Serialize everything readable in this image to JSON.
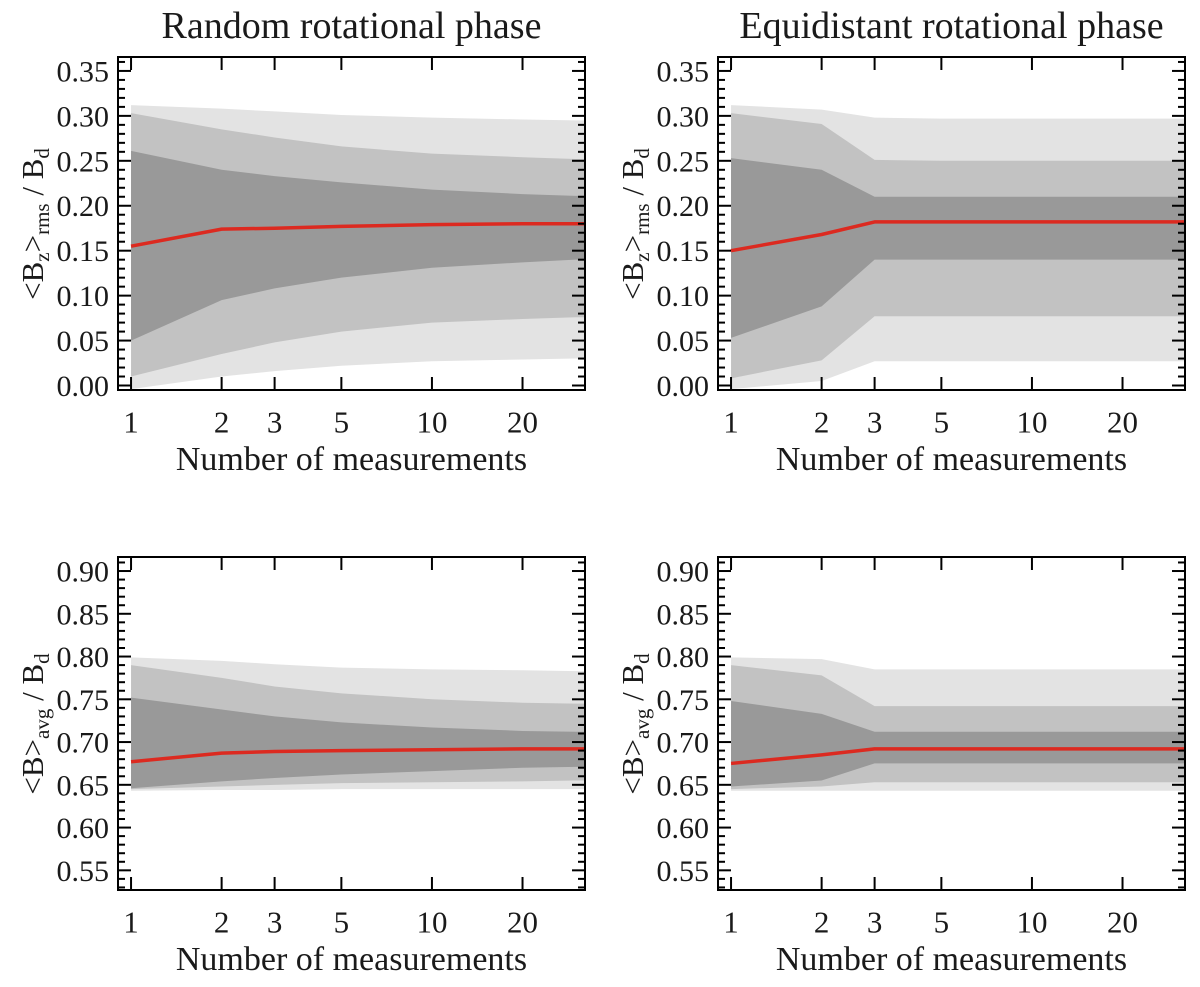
{
  "figure": {
    "column_titles": [
      "Random rotational phase",
      "Equidistant rotational phase"
    ],
    "xlabel": "Number of measurements",
    "ylabel_top_parts": {
      "pre": "<B",
      "sub1": "z",
      "mid": ">",
      "sub2": "rms",
      "post": " / B",
      "sub3": "d"
    },
    "ylabel_bottom_parts": {
      "pre": "<B",
      "sub1": "",
      "mid": ">",
      "sub2": "avg",
      "post": " / B",
      "sub3": "d"
    }
  },
  "colors": {
    "band_light": "#e3e3e3",
    "band_medium": "#c2c2c2",
    "band_dark": "#999999",
    "median_line": "#dc2a20",
    "axis": "#000000",
    "text": "#1a1a1a"
  },
  "chart_data": [
    {
      "type": "area",
      "title": "Random rotational phase",
      "ylabel": "<B_z>_rms / B_d",
      "xlabel": "Number of measurements",
      "x_scale": "log",
      "x": [
        1,
        2,
        3,
        5,
        10,
        20,
        30
      ],
      "xlim": [
        0.905,
        32.26
      ],
      "ylim": [
        -0.005,
        0.3655
      ],
      "xticks": [
        1,
        2,
        3,
        5,
        10,
        20
      ],
      "xtick_labels": [
        "1",
        "2",
        "3",
        "5",
        "10",
        "20"
      ],
      "yticks": [
        0.0,
        0.05,
        0.1,
        0.15,
        0.2,
        0.25,
        0.3,
        0.35
      ],
      "ytick_labels": [
        "0.00",
        "0.05",
        "0.10",
        "0.15",
        "0.20",
        "0.25",
        "0.30",
        "0.35"
      ],
      "y_minor_step": 0.01,
      "median": {
        "name": "median",
        "values": [
          0.155,
          0.174,
          0.175,
          0.177,
          0.179,
          0.18,
          0.18
        ]
      },
      "bands": [
        {
          "name": "light_band",
          "upper": [
            0.312,
            0.308,
            0.305,
            0.301,
            0.298,
            0.296,
            0.295
          ],
          "lower": [
            -0.004,
            0.01,
            0.016,
            0.022,
            0.027,
            0.029,
            0.03
          ]
        },
        {
          "name": "medium_band",
          "upper": [
            0.303,
            0.285,
            0.276,
            0.266,
            0.258,
            0.254,
            0.252
          ],
          "lower": [
            0.01,
            0.035,
            0.048,
            0.06,
            0.07,
            0.074,
            0.076
          ]
        },
        {
          "name": "dark_band",
          "upper": [
            0.261,
            0.24,
            0.233,
            0.226,
            0.218,
            0.213,
            0.211
          ],
          "lower": [
            0.05,
            0.095,
            0.108,
            0.12,
            0.131,
            0.137,
            0.14
          ]
        }
      ]
    },
    {
      "type": "area",
      "title": "Equidistant rotational phase",
      "ylabel": "<B_z>_rms / B_d",
      "xlabel": "Number of measurements",
      "x_scale": "log",
      "x": [
        1,
        2,
        3,
        5,
        10,
        20,
        30
      ],
      "xlim": [
        0.905,
        32.26
      ],
      "ylim": [
        -0.005,
        0.3655
      ],
      "xticks": [
        1,
        2,
        3,
        5,
        10,
        20
      ],
      "xtick_labels": [
        "1",
        "2",
        "3",
        "5",
        "10",
        "20"
      ],
      "yticks": [
        0.0,
        0.05,
        0.1,
        0.15,
        0.2,
        0.25,
        0.3,
        0.35
      ],
      "ytick_labels": [
        "0.00",
        "0.05",
        "0.10",
        "0.15",
        "0.20",
        "0.25",
        "0.30",
        "0.35"
      ],
      "y_minor_step": 0.01,
      "median": {
        "name": "median",
        "values": [
          0.15,
          0.168,
          0.182,
          0.182,
          0.182,
          0.182,
          0.182
        ]
      },
      "bands": [
        {
          "name": "light_band",
          "upper": [
            0.312,
            0.307,
            0.298,
            0.297,
            0.297,
            0.297,
            0.297
          ],
          "lower": [
            -0.004,
            0.005,
            0.027,
            0.027,
            0.027,
            0.027,
            0.027
          ]
        },
        {
          "name": "medium_band",
          "upper": [
            0.303,
            0.291,
            0.251,
            0.25,
            0.25,
            0.25,
            0.25
          ],
          "lower": [
            0.008,
            0.028,
            0.077,
            0.077,
            0.077,
            0.077,
            0.077
          ]
        },
        {
          "name": "dark_band",
          "upper": [
            0.253,
            0.24,
            0.21,
            0.21,
            0.21,
            0.21,
            0.21
          ],
          "lower": [
            0.053,
            0.088,
            0.14,
            0.14,
            0.14,
            0.14,
            0.14
          ]
        }
      ]
    },
    {
      "type": "area",
      "ylabel": "<B>_avg / B_d",
      "xlabel": "Number of measurements",
      "x_scale": "log",
      "x": [
        1,
        2,
        3,
        5,
        10,
        20,
        30
      ],
      "xlim": [
        0.905,
        32.26
      ],
      "ylim": [
        0.527,
        0.9164
      ],
      "xticks": [
        1,
        2,
        3,
        5,
        10,
        20
      ],
      "xtick_labels": [
        "1",
        "2",
        "3",
        "5",
        "10",
        "20"
      ],
      "yticks": [
        0.55,
        0.6,
        0.65,
        0.7,
        0.75,
        0.8,
        0.85,
        0.9
      ],
      "ytick_labels": [
        "0.55",
        "0.60",
        "0.65",
        "0.70",
        "0.75",
        "0.80",
        "0.85",
        "0.90"
      ],
      "y_minor_step": 0.01,
      "median": {
        "name": "median",
        "values": [
          0.677,
          0.687,
          0.689,
          0.69,
          0.691,
          0.692,
          0.692
        ]
      },
      "bands": [
        {
          "name": "light_band",
          "upper": [
            0.799,
            0.795,
            0.791,
            0.787,
            0.785,
            0.784,
            0.783
          ],
          "lower": [
            0.643,
            0.644,
            0.644,
            0.645,
            0.645,
            0.645,
            0.645
          ]
        },
        {
          "name": "medium_band",
          "upper": [
            0.79,
            0.775,
            0.765,
            0.757,
            0.75,
            0.746,
            0.745
          ],
          "lower": [
            0.645,
            0.648,
            0.65,
            0.652,
            0.653,
            0.654,
            0.655
          ]
        },
        {
          "name": "dark_band",
          "upper": [
            0.752,
            0.738,
            0.73,
            0.723,
            0.717,
            0.713,
            0.712
          ],
          "lower": [
            0.646,
            0.654,
            0.658,
            0.662,
            0.666,
            0.67,
            0.671
          ]
        }
      ]
    },
    {
      "type": "area",
      "ylabel": "<B>_avg / B_d",
      "xlabel": "Number of measurements",
      "x_scale": "log",
      "x": [
        1,
        2,
        3,
        5,
        10,
        20,
        30
      ],
      "xlim": [
        0.905,
        32.26
      ],
      "ylim": [
        0.527,
        0.9164
      ],
      "xticks": [
        1,
        2,
        3,
        5,
        10,
        20
      ],
      "xtick_labels": [
        "1",
        "2",
        "3",
        "5",
        "10",
        "20"
      ],
      "yticks": [
        0.55,
        0.6,
        0.65,
        0.7,
        0.75,
        0.8,
        0.85,
        0.9
      ],
      "ytick_labels": [
        "0.55",
        "0.60",
        "0.65",
        "0.70",
        "0.75",
        "0.80",
        "0.85",
        "0.90"
      ],
      "y_minor_step": 0.01,
      "median": {
        "name": "median",
        "values": [
          0.675,
          0.685,
          0.692,
          0.692,
          0.692,
          0.692,
          0.692
        ]
      },
      "bands": [
        {
          "name": "light_band",
          "upper": [
            0.799,
            0.797,
            0.785,
            0.785,
            0.785,
            0.785,
            0.785
          ],
          "lower": [
            0.643,
            0.643,
            0.643,
            0.643,
            0.643,
            0.643,
            0.643
          ]
        },
        {
          "name": "medium_band",
          "upper": [
            0.79,
            0.778,
            0.742,
            0.742,
            0.742,
            0.742,
            0.742
          ],
          "lower": [
            0.645,
            0.648,
            0.653,
            0.653,
            0.653,
            0.653,
            0.653
          ]
        },
        {
          "name": "dark_band",
          "upper": [
            0.748,
            0.733,
            0.712,
            0.712,
            0.712,
            0.712,
            0.712
          ],
          "lower": [
            0.648,
            0.655,
            0.675,
            0.675,
            0.675,
            0.675,
            0.675
          ]
        }
      ]
    }
  ]
}
